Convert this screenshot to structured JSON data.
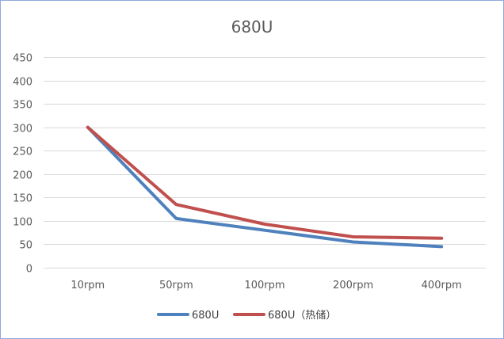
{
  "chart_data": {
    "type": "line",
    "title": "680U",
    "categories": [
      "10rpm",
      "50rpm",
      "100rpm",
      "200rpm",
      "400rpm"
    ],
    "series": [
      {
        "name": "680U",
        "color": "#4f81bd",
        "values": [
          300,
          105,
          80,
          55,
          45
        ]
      },
      {
        "name": "680U（热储）",
        "color": "#c0504d",
        "values": [
          300,
          135,
          93,
          66,
          63
        ]
      }
    ],
    "ylim": [
      0,
      450
    ],
    "yticks": [
      0,
      50,
      100,
      150,
      200,
      250,
      300,
      350,
      400,
      450
    ],
    "grid": true,
    "legend_position": "bottom"
  }
}
